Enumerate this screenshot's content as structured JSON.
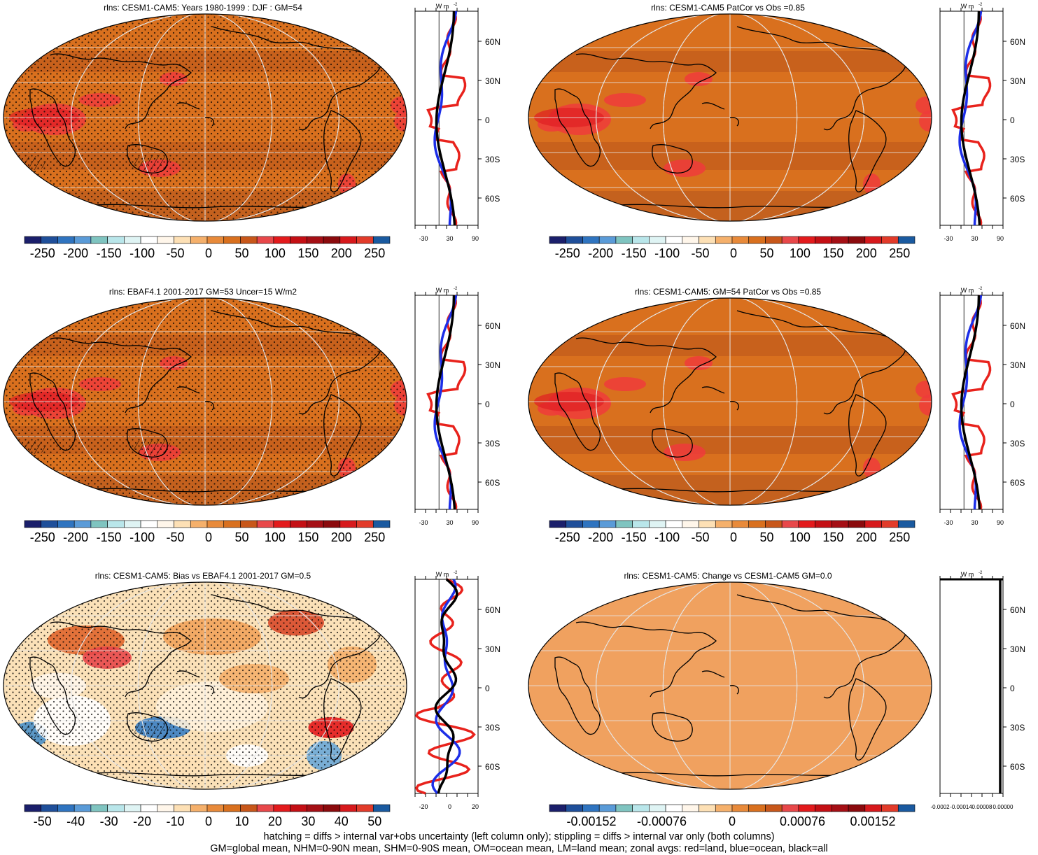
{
  "units": "W m",
  "units_sup": "-2",
  "panels": [
    {
      "id": "model",
      "title": "rlns: CESM1-CAM5: Years 1980-1999 : DJF : GM=54",
      "map": {
        "base": "#d9701e",
        "bands": "warm",
        "stipple": true,
        "hatch": true
      },
      "colorbar": {
        "labels": [
          "-250",
          "-200",
          "-150",
          "-100",
          "-50",
          "0",
          "50",
          "100",
          "150",
          "200",
          "250"
        ]
      },
      "zonal": {
        "xticks": [
          "-30",
          "30",
          "90"
        ],
        "lats": [
          "60N",
          "30N",
          "0",
          "30S",
          "60S"
        ],
        "type": "model"
      }
    },
    {
      "id": "model-change",
      "title": "rlns: CESM1-CAM5 PatCor vs Obs =0.85",
      "map": {
        "base": "#d9701e",
        "bands": "warm",
        "stipple": false,
        "hatch": false
      },
      "colorbar": {
        "labels": [
          "-250",
          "-200",
          "-150",
          "-100",
          "-50",
          "0",
          "50",
          "100",
          "150",
          "200",
          "250"
        ]
      },
      "zonal": {
        "xticks": [
          "-30",
          "30",
          "90"
        ],
        "lats": [
          "60N",
          "30N",
          "0",
          "30S",
          "60S"
        ],
        "type": "model"
      }
    },
    {
      "id": "obs",
      "title": "rlns: EBAF4.1 2001-2017 GM=53 Uncer=15 W/m2",
      "map": {
        "base": "#d9701e",
        "bands": "warm",
        "stipple": true,
        "hatch": true
      },
      "colorbar": {
        "labels": [
          "-250",
          "-200",
          "-150",
          "-100",
          "-50",
          "0",
          "50",
          "100",
          "150",
          "200",
          "250"
        ]
      },
      "zonal": {
        "xticks": [
          "-30",
          "30",
          "90"
        ],
        "lats": [
          "60N",
          "30N",
          "0",
          "30S",
          "60S"
        ],
        "type": "obs"
      }
    },
    {
      "id": "model2",
      "title": "rlns: CESM1-CAM5: GM=54 PatCor vs Obs =0.85",
      "map": {
        "base": "#d9701e",
        "bands": "warm",
        "stipple": false,
        "hatch": false
      },
      "colorbar": {
        "labels": [
          "-250",
          "-200",
          "-150",
          "-100",
          "-50",
          "0",
          "50",
          "100",
          "150",
          "200",
          "250"
        ]
      },
      "zonal": {
        "xticks": [
          "-30",
          "30",
          "90"
        ],
        "lats": [
          "60N",
          "30N",
          "0",
          "30S",
          "60S"
        ],
        "type": "model"
      }
    },
    {
      "id": "bias",
      "title": "rlns: CESM1-CAM5: Bias vs EBAF4.1 2001-2017 GM=0.5",
      "map": {
        "base": "#fbe1b8",
        "bands": "bias",
        "stipple": true,
        "hatch": true
      },
      "colorbar": {
        "labels": [
          "-50",
          "-40",
          "-30",
          "-20",
          "-10",
          "0",
          "10",
          "20",
          "30",
          "40",
          "50"
        ]
      },
      "zonal": {
        "xticks": [
          "-20",
          "0",
          "20"
        ],
        "lats": [
          "60N",
          "30N",
          "0",
          "30S",
          "60S"
        ],
        "type": "bias"
      }
    },
    {
      "id": "change",
      "title": "rlns: CESM1-CAM5: Change vs CESM1-CAM5 GM=0.0",
      "map": {
        "base": "#f0a15f",
        "bands": "none",
        "stipple": false,
        "hatch": false
      },
      "colorbar": {
        "labels": [
          "-0.00152",
          "-0.00076",
          "0",
          "0.00076",
          "0.00152"
        ]
      },
      "zonal": {
        "xticks": [
          "-0.0002",
          "-0.00014",
          "0.00008",
          "0.00000"
        ],
        "lats": [
          "60N",
          "30N",
          "0",
          "30S",
          "60S"
        ],
        "type": "flat"
      }
    }
  ],
  "colorbar_colors": [
    "#1b1f6b",
    "#1f4f9a",
    "#2f74c0",
    "#5a9bd8",
    "#7fc4c0",
    "#b9e6ea",
    "#dff4f4",
    "#ffffff",
    "#fff6ea",
    "#fde0b5",
    "#f5b06b",
    "#e88a3a",
    "#d9701e",
    "#c8571a",
    "#e8484a",
    "#e31a1c",
    "#c40f14",
    "#a50f15",
    "#8b0a0d",
    "#d7191c",
    "#e23b2a",
    "#1a5aa0"
  ],
  "footnote": [
    "hatching = diffs > internal var+obs uncertainty (left column only); stippling = diffs > internal var only (both columns)",
    "GM=global mean, NHM=0-90N mean, SHM=0-90S mean, OM=ocean mean, LM=land mean; zonal avgs: red=land, blue=ocean, black=all"
  ]
}
